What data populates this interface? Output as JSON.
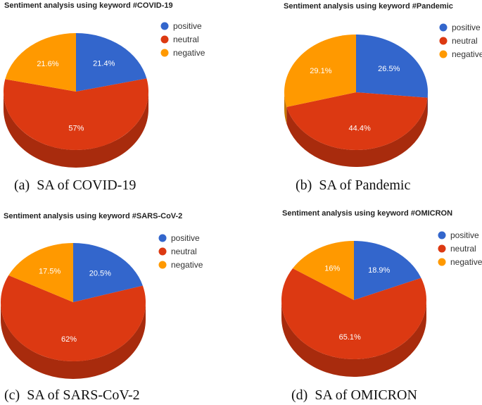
{
  "colors": {
    "positive": "#3366cc",
    "neutral": "#dc3912",
    "negative": "#ff9900",
    "positive_side": "#284f9e",
    "neutral_side": "#a82b0d",
    "negative_side": "#c47500"
  },
  "chart_data": [
    {
      "type": "pie",
      "title": "Sentiment analysis using keyword #COVID-19",
      "caption_tag": "(a)",
      "caption": "SA of COVID-19",
      "legend": [
        "positive",
        "neutral",
        "negative"
      ],
      "legend_position": "right",
      "values": [
        21.4,
        57,
        21.6
      ],
      "labels": [
        "21.4%",
        "57%",
        "21.6%"
      ]
    },
    {
      "type": "pie",
      "title": "Sentiment analysis using keyword #Pandemic",
      "caption_tag": "(b)",
      "caption": "SA of Pandemic",
      "legend": [
        "positive",
        "neutral",
        "negative"
      ],
      "legend_position": "right",
      "values": [
        26.5,
        44.4,
        29.1
      ],
      "labels": [
        "26.5%",
        "44.4%",
        "29.1%"
      ]
    },
    {
      "type": "pie",
      "title": "Sentiment analysis using keyword #SARS-CoV-2",
      "caption_tag": "(c)",
      "caption": "SA of SARS-CoV-2",
      "legend": [
        "positive",
        "neutral",
        "negative"
      ],
      "legend_position": "right",
      "values": [
        20.5,
        62,
        17.5
      ],
      "labels": [
        "20.5%",
        "62%",
        "17.5%"
      ]
    },
    {
      "type": "pie",
      "title": "Sentiment analysis using keyword #OMICRON",
      "caption_tag": "(d)",
      "caption": "SA of OMICRON",
      "legend": [
        "positive",
        "neutral",
        "negative"
      ],
      "legend_position": "right",
      "values": [
        18.9,
        65.1,
        16
      ],
      "labels": [
        "18.9%",
        "65.1%",
        "16%"
      ]
    }
  ]
}
